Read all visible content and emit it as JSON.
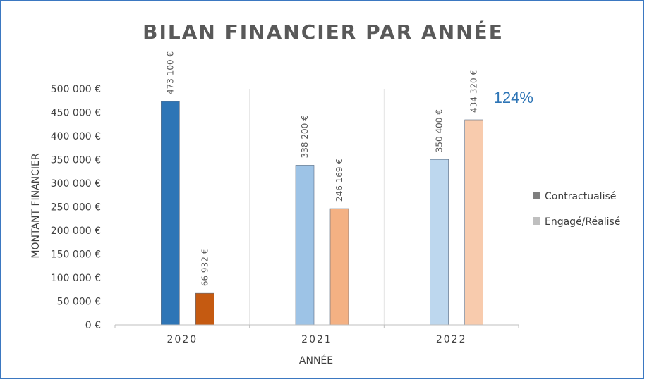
{
  "chart_data": {
    "type": "bar",
    "title": "BILAN FINANCIER PAR ANNÉE",
    "xlabel": "ANNÉE",
    "ylabel": "MONTANT FINANCIER",
    "categories": [
      "2020",
      "2021",
      "2022"
    ],
    "ylim": [
      0,
      500000
    ],
    "yticks": [
      0,
      50000,
      100000,
      150000,
      200000,
      250000,
      300000,
      350000,
      400000,
      450000,
      500000
    ],
    "ytick_labels": [
      "0 €",
      "50 000 €",
      "100 000 €",
      "150 000 €",
      "200 000 €",
      "250 000 €",
      "300 000 €",
      "350 000 €",
      "400 000 €",
      "450 000 €",
      "500 000 €"
    ],
    "grid": "vertical separators between categories",
    "legend_position": "right",
    "series": [
      {
        "name": "Contractualisé",
        "values": [
          473100,
          338200,
          350400
        ],
        "labels": [
          "473 100 €",
          "338 200 €",
          "350 400 €"
        ],
        "colors": [
          "#2e75b6",
          "#9dc3e6",
          "#bdd7ee"
        ],
        "legend_color": "#7f7f7f"
      },
      {
        "name": "Engagé/Réalisé",
        "values": [
          66932,
          246169,
          434320
        ],
        "labels": [
          "66 932 €",
          "246 169 €",
          "434 320 €"
        ],
        "colors": [
          "#c55a11",
          "#f4b183",
          "#f8cbad"
        ],
        "legend_color": "#bfbfbf"
      }
    ],
    "annotations": [
      {
        "text": "124%",
        "category": "2022",
        "color": "#2e75b6"
      }
    ]
  }
}
